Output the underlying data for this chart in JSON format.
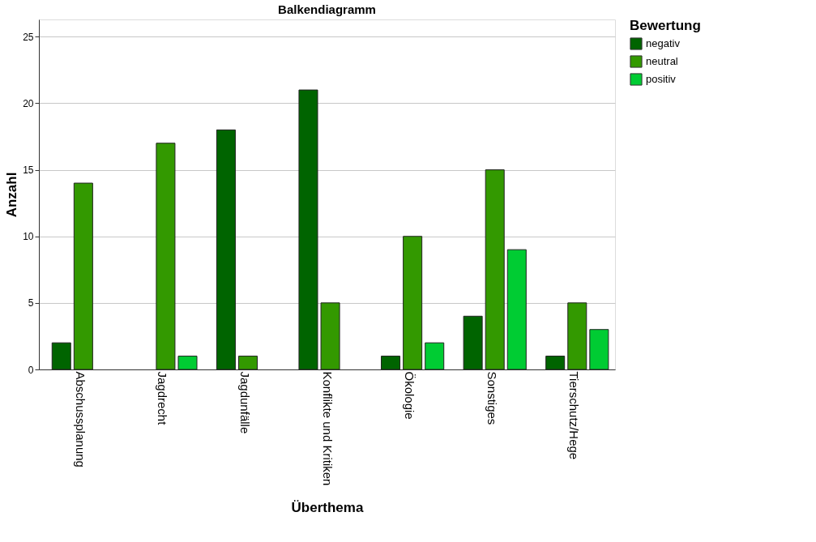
{
  "chart_data": {
    "type": "bar",
    "title": "Balkendiagramm",
    "xlabel": "Überthema",
    "ylabel": "Anzahl",
    "legend_title": "Bewertung",
    "categories": [
      "Abschussplanung",
      "Jagdrecht",
      "Jagdunfälle",
      "Konflikte und Kritiken",
      "Ökologie",
      "Sonstiges",
      "Tierschutz/Hege"
    ],
    "series": [
      {
        "name": "negativ",
        "color": "#006400",
        "values": [
          2,
          null,
          18,
          21,
          1,
          4,
          1
        ]
      },
      {
        "name": "neutral",
        "color": "#339900",
        "values": [
          14,
          17,
          1,
          5,
          10,
          15,
          5
        ]
      },
      {
        "name": "positiv",
        "color": "#00cc33",
        "values": [
          null,
          1,
          null,
          null,
          2,
          9,
          3
        ]
      }
    ],
    "ylim": [
      0,
      26.3
    ],
    "yticks": [
      0,
      5,
      10,
      15,
      20,
      25
    ],
    "grid": "y",
    "legend": "top right"
  }
}
